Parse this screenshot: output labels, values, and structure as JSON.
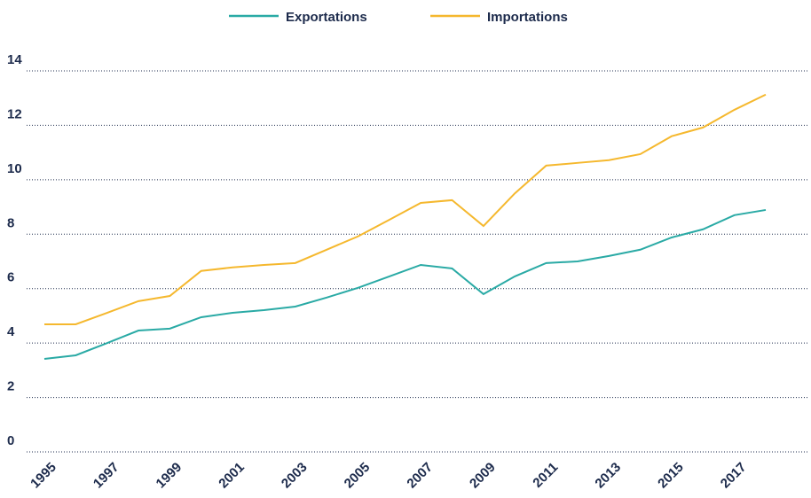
{
  "chart_data": {
    "type": "line",
    "x": [
      1995,
      1996,
      1997,
      1998,
      1999,
      2000,
      2001,
      2002,
      2003,
      2004,
      2005,
      2006,
      2007,
      2008,
      2009,
      2010,
      2011,
      2012,
      2013,
      2014,
      2015,
      2016,
      2017,
      2018
    ],
    "series": [
      {
        "name": "Exportations",
        "color": "#2aaaa5",
        "values": [
          3.42,
          3.55,
          4.0,
          4.46,
          4.53,
          4.95,
          5.11,
          5.21,
          5.34,
          5.67,
          6.03,
          6.45,
          6.87,
          6.74,
          5.8,
          6.45,
          6.94,
          7.0,
          7.2,
          7.43,
          7.88,
          8.18,
          8.7,
          8.89
        ]
      },
      {
        "name": "Importations",
        "color": "#f5b82e",
        "values": [
          4.69,
          4.69,
          5.11,
          5.54,
          5.73,
          6.65,
          6.78,
          6.87,
          6.94,
          7.43,
          7.92,
          8.53,
          9.15,
          9.25,
          8.3,
          9.5,
          10.52,
          10.62,
          10.72,
          10.94,
          11.6,
          11.92,
          12.57,
          13.13
        ]
      }
    ],
    "xlim": [
      1995,
      2018
    ],
    "xticks": [
      1995,
      1997,
      1999,
      2001,
      2003,
      2005,
      2007,
      2009,
      2011,
      2013,
      2015,
      2017
    ],
    "ylim": [
      0,
      14
    ],
    "yticks": [
      0,
      2,
      4,
      6,
      8,
      10,
      12,
      14
    ],
    "grid": true,
    "legend": "top"
  }
}
